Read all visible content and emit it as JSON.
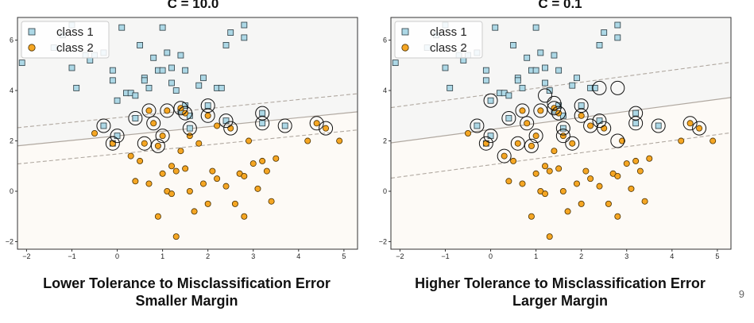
{
  "page_number": "9",
  "colors": {
    "class1": "#add8e6",
    "class2": "#f5a623",
    "boundary": "#b0a8a0",
    "background": "#fdfaf6"
  },
  "chart_data": [
    {
      "type": "scatter",
      "title": "C = 10.0",
      "caption_lines": [
        "Lower Tolerance to Misclassification Error",
        "Smaller Margin"
      ],
      "xlim": [
        -2.2,
        5.3
      ],
      "ylim": [
        -2.3,
        6.9
      ],
      "xticks": [
        -2,
        -1,
        0,
        1,
        2,
        3,
        4,
        5
      ],
      "yticks": [
        -2,
        0,
        2,
        4,
        6
      ],
      "legend": {
        "position": "top-left",
        "entries": [
          "class 1",
          "class 2"
        ]
      },
      "decision_boundary": {
        "slope": 0.18,
        "intercept": 2.2,
        "margin": 0.72
      },
      "series": [
        {
          "name": "class 1",
          "marker": "square",
          "points": [
            [
              -2.1,
              5.1
            ],
            [
              -1.4,
              5.7
            ],
            [
              -1.2,
              6.2
            ],
            [
              -1.0,
              6.6
            ],
            [
              -1.0,
              4.9
            ],
            [
              -0.9,
              4.1
            ],
            [
              -0.7,
              5.4
            ],
            [
              -0.6,
              5.2
            ],
            [
              -0.5,
              5.4
            ],
            [
              -0.3,
              5.5
            ],
            [
              -0.1,
              4.8
            ],
            [
              -0.1,
              4.4
            ],
            [
              0.0,
              3.6
            ],
            [
              0.1,
              6.5
            ],
            [
              0.2,
              3.9
            ],
            [
              0.3,
              3.9
            ],
            [
              0.4,
              3.8
            ],
            [
              0.5,
              5.8
            ],
            [
              0.6,
              4.5
            ],
            [
              0.6,
              4.4
            ],
            [
              0.7,
              4.1
            ],
            [
              0.8,
              5.3
            ],
            [
              0.9,
              4.8
            ],
            [
              1.0,
              6.5
            ],
            [
              1.0,
              4.8
            ],
            [
              1.1,
              5.5
            ],
            [
              1.2,
              4.9
            ],
            [
              1.2,
              4.3
            ],
            [
              1.3,
              4.0
            ],
            [
              1.4,
              3.2
            ],
            [
              1.4,
              5.4
            ],
            [
              1.5,
              4.8
            ],
            [
              1.5,
              3.4
            ],
            [
              1.6,
              3.0
            ],
            [
              1.8,
              4.2
            ],
            [
              1.9,
              4.5
            ],
            [
              2.2,
              4.1
            ],
            [
              2.3,
              4.1
            ],
            [
              2.4,
              5.8
            ],
            [
              2.5,
              6.3
            ],
            [
              2.8,
              6.6
            ],
            [
              2.8,
              6.1
            ],
            [
              0.0,
              2.2
            ],
            [
              -0.1,
              1.9
            ],
            [
              -0.3,
              2.6
            ],
            [
              0.4,
              2.9
            ],
            [
              1.6,
              2.5
            ],
            [
              2.0,
              3.4
            ],
            [
              2.4,
              2.8
            ],
            [
              3.2,
              2.7
            ],
            [
              3.2,
              3.1
            ],
            [
              3.7,
              2.6
            ]
          ]
        },
        {
          "name": "class 2",
          "marker": "circle",
          "points": [
            [
              -0.5,
              2.3
            ],
            [
              -0.1,
              1.9
            ],
            [
              0.3,
              1.4
            ],
            [
              0.4,
              0.4
            ],
            [
              0.5,
              1.2
            ],
            [
              0.6,
              1.9
            ],
            [
              0.7,
              0.3
            ],
            [
              0.7,
              3.2
            ],
            [
              0.8,
              2.7
            ],
            [
              0.9,
              1.8
            ],
            [
              0.9,
              -1.0
            ],
            [
              1.0,
              2.2
            ],
            [
              1.0,
              0.7
            ],
            [
              1.1,
              3.2
            ],
            [
              1.1,
              0.0
            ],
            [
              1.2,
              -0.1
            ],
            [
              1.2,
              1.0
            ],
            [
              1.3,
              0.8
            ],
            [
              1.3,
              -1.8
            ],
            [
              1.4,
              1.6
            ],
            [
              1.4,
              3.3
            ],
            [
              1.5,
              3.1
            ],
            [
              1.5,
              0.9
            ],
            [
              1.6,
              0.0
            ],
            [
              1.6,
              2.2
            ],
            [
              1.7,
              -0.8
            ],
            [
              1.8,
              1.9
            ],
            [
              1.9,
              0.3
            ],
            [
              2.0,
              3.0
            ],
            [
              2.0,
              -0.5
            ],
            [
              2.1,
              0.8
            ],
            [
              2.2,
              0.5
            ],
            [
              2.2,
              2.6
            ],
            [
              2.4,
              0.2
            ],
            [
              2.5,
              2.5
            ],
            [
              2.6,
              -0.5
            ],
            [
              2.7,
              0.7
            ],
            [
              2.8,
              0.6
            ],
            [
              2.8,
              -1.0
            ],
            [
              2.9,
              2.0
            ],
            [
              3.0,
              1.1
            ],
            [
              3.1,
              0.1
            ],
            [
              3.2,
              1.2
            ],
            [
              3.3,
              0.8
            ],
            [
              3.4,
              -0.4
            ],
            [
              3.5,
              1.3
            ],
            [
              4.2,
              2.0
            ],
            [
              4.4,
              2.7
            ],
            [
              4.6,
              2.5
            ],
            [
              4.9,
              2.0
            ]
          ]
        }
      ],
      "support_vectors": [
        [
          -0.3,
          2.6
        ],
        [
          0.0,
          2.2
        ],
        [
          -0.1,
          1.9
        ],
        [
          0.4,
          2.9
        ],
        [
          0.6,
          1.9
        ],
        [
          0.7,
          3.2
        ],
        [
          0.8,
          2.7
        ],
        [
          0.9,
          1.8
        ],
        [
          1.0,
          2.2
        ],
        [
          1.1,
          3.2
        ],
        [
          1.4,
          3.3
        ],
        [
          1.5,
          3.1
        ],
        [
          1.6,
          2.5
        ],
        [
          2.0,
          3.0
        ],
        [
          2.0,
          3.4
        ],
        [
          2.4,
          2.8
        ],
        [
          2.5,
          2.5
        ],
        [
          3.2,
          2.7
        ],
        [
          3.2,
          3.1
        ],
        [
          3.7,
          2.6
        ],
        [
          4.4,
          2.7
        ],
        [
          4.6,
          2.5
        ]
      ]
    },
    {
      "type": "scatter",
      "title": "C = 0.1",
      "caption_lines": [
        "Higher Tolerance to Misclassification Error",
        "Larger Margin"
      ],
      "xlim": [
        -2.2,
        5.3
      ],
      "ylim": [
        -2.3,
        6.9
      ],
      "xticks": [
        -2,
        -1,
        0,
        1,
        2,
        3,
        4,
        5
      ],
      "yticks": [
        -2,
        0,
        2,
        4,
        6
      ],
      "legend": {
        "position": "top-left",
        "entries": [
          "class 1",
          "class 2"
        ]
      },
      "decision_boundary": {
        "slope": 0.24,
        "intercept": 2.45,
        "margin": 1.4
      },
      "series": [
        {
          "name": "class 1",
          "marker": "square",
          "points": [
            [
              -2.1,
              5.1
            ],
            [
              -1.4,
              5.7
            ],
            [
              -1.2,
              6.2
            ],
            [
              -1.0,
              6.6
            ],
            [
              -1.0,
              4.9
            ],
            [
              -0.9,
              4.1
            ],
            [
              -0.7,
              5.4
            ],
            [
              -0.6,
              5.2
            ],
            [
              -0.5,
              5.4
            ],
            [
              -0.3,
              5.5
            ],
            [
              -0.1,
              4.8
            ],
            [
              -0.1,
              4.4
            ],
            [
              0.0,
              3.6
            ],
            [
              0.1,
              6.5
            ],
            [
              0.2,
              3.9
            ],
            [
              0.3,
              3.9
            ],
            [
              0.4,
              3.8
            ],
            [
              0.5,
              5.8
            ],
            [
              0.6,
              4.5
            ],
            [
              0.6,
              4.4
            ],
            [
              0.7,
              4.1
            ],
            [
              0.8,
              5.3
            ],
            [
              0.9,
              4.8
            ],
            [
              1.0,
              6.5
            ],
            [
              1.0,
              4.8
            ],
            [
              1.1,
              5.5
            ],
            [
              1.2,
              4.9
            ],
            [
              1.2,
              4.3
            ],
            [
              1.3,
              4.0
            ],
            [
              1.4,
              3.2
            ],
            [
              1.4,
              5.4
            ],
            [
              1.5,
              4.8
            ],
            [
              1.5,
              3.4
            ],
            [
              1.6,
              3.0
            ],
            [
              1.8,
              4.2
            ],
            [
              1.9,
              4.5
            ],
            [
              2.2,
              4.1
            ],
            [
              2.3,
              4.1
            ],
            [
              2.4,
              5.8
            ],
            [
              2.5,
              6.3
            ],
            [
              2.8,
              6.6
            ],
            [
              2.8,
              6.1
            ],
            [
              0.0,
              2.2
            ],
            [
              -0.1,
              1.9
            ],
            [
              -0.3,
              2.6
            ],
            [
              0.4,
              2.9
            ],
            [
              1.6,
              2.5
            ],
            [
              2.0,
              3.4
            ],
            [
              2.4,
              2.8
            ],
            [
              3.2,
              2.7
            ],
            [
              3.2,
              3.1
            ],
            [
              3.7,
              2.6
            ]
          ]
        },
        {
          "name": "class 2",
          "marker": "circle",
          "points": [
            [
              -0.5,
              2.3
            ],
            [
              -0.1,
              1.9
            ],
            [
              0.3,
              1.4
            ],
            [
              0.4,
              0.4
            ],
            [
              0.5,
              1.2
            ],
            [
              0.6,
              1.9
            ],
            [
              0.7,
              0.3
            ],
            [
              0.7,
              3.2
            ],
            [
              0.8,
              2.7
            ],
            [
              0.9,
              1.8
            ],
            [
              0.9,
              -1.0
            ],
            [
              1.0,
              2.2
            ],
            [
              1.0,
              0.7
            ],
            [
              1.1,
              3.2
            ],
            [
              1.1,
              0.0
            ],
            [
              1.2,
              -0.1
            ],
            [
              1.2,
              1.0
            ],
            [
              1.3,
              0.8
            ],
            [
              1.3,
              -1.8
            ],
            [
              1.4,
              1.6
            ],
            [
              1.4,
              3.3
            ],
            [
              1.5,
              3.1
            ],
            [
              1.5,
              0.9
            ],
            [
              1.6,
              0.0
            ],
            [
              1.6,
              2.2
            ],
            [
              1.7,
              -0.8
            ],
            [
              1.8,
              1.9
            ],
            [
              1.9,
              0.3
            ],
            [
              2.0,
              3.0
            ],
            [
              2.0,
              -0.5
            ],
            [
              2.1,
              0.8
            ],
            [
              2.2,
              0.5
            ],
            [
              2.2,
              2.6
            ],
            [
              2.4,
              0.2
            ],
            [
              2.5,
              2.5
            ],
            [
              2.6,
              -0.5
            ],
            [
              2.7,
              0.7
            ],
            [
              2.8,
              0.6
            ],
            [
              2.8,
              -1.0
            ],
            [
              2.9,
              2.0
            ],
            [
              3.0,
              1.1
            ],
            [
              3.1,
              0.1
            ],
            [
              3.2,
              1.2
            ],
            [
              3.3,
              0.8
            ],
            [
              3.4,
              -0.4
            ],
            [
              3.5,
              1.3
            ],
            [
              4.2,
              2.0
            ],
            [
              4.4,
              2.7
            ],
            [
              4.6,
              2.5
            ],
            [
              4.9,
              2.0
            ]
          ]
        }
      ],
      "support_vectors": [
        [
          -0.3,
          2.6
        ],
        [
          0.0,
          2.2
        ],
        [
          -0.1,
          1.9
        ],
        [
          0.0,
          3.6
        ],
        [
          0.4,
          2.9
        ],
        [
          0.3,
          1.4
        ],
        [
          0.6,
          1.9
        ],
        [
          0.7,
          3.2
        ],
        [
          0.8,
          2.7
        ],
        [
          0.9,
          1.8
        ],
        [
          1.0,
          2.2
        ],
        [
          1.1,
          3.2
        ],
        [
          1.2,
          3.8
        ],
        [
          1.4,
          3.3
        ],
        [
          1.5,
          3.1
        ],
        [
          1.4,
          3.5
        ],
        [
          1.6,
          2.5
        ],
        [
          1.6,
          2.2
        ],
        [
          1.8,
          1.9
        ],
        [
          2.0,
          3.0
        ],
        [
          2.0,
          3.4
        ],
        [
          2.2,
          2.6
        ],
        [
          2.4,
          2.8
        ],
        [
          2.4,
          4.1
        ],
        [
          2.5,
          2.5
        ],
        [
          2.8,
          4.1
        ],
        [
          2.8,
          2.0
        ],
        [
          3.2,
          2.7
        ],
        [
          3.2,
          3.1
        ],
        [
          3.7,
          2.6
        ],
        [
          4.4,
          2.7
        ],
        [
          4.6,
          2.5
        ]
      ]
    }
  ]
}
